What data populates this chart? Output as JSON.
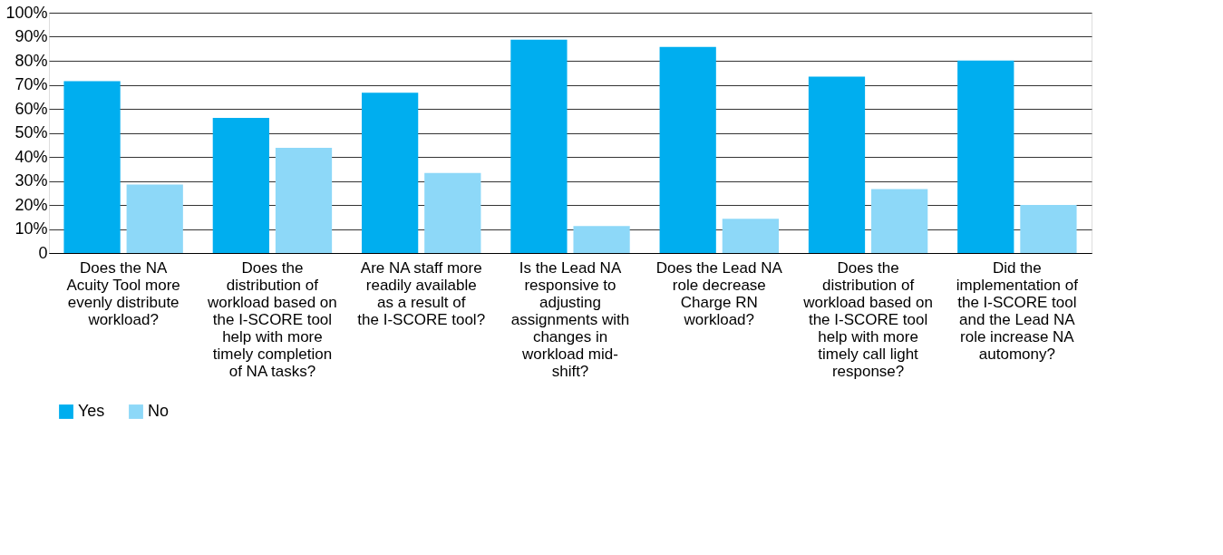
{
  "chart_data": {
    "type": "bar",
    "categories": [
      "Does the NA Acuity Tool more evenly distribute workload?",
      "Does the distribution of workload based on the I-SCORE tool help with more timely completion of NA tasks?",
      "Are NA staff more readily available as a result of the I-SCORE tool?",
      "Is the Lead NA responsive to adjusting assignments with changes in workload mid-shift?",
      "Does the Lead NA role decrease Charge RN workload?",
      "Does the distribution of workload based on the I-SCORE tool help with more timely call light response?",
      "Did the implementation of the I-SCORE tool and the Lead NA role increase NA automony?"
    ],
    "series": [
      {
        "name": "Yes",
        "color": "#00aeef",
        "values": [
          71.5,
          56.2,
          66.7,
          88.8,
          85.8,
          73.4,
          80.1
        ]
      },
      {
        "name": "No",
        "color": "#8dd8f8",
        "values": [
          28.5,
          43.8,
          33.3,
          11.2,
          14.2,
          26.6,
          20.0
        ]
      }
    ],
    "ylim": [
      0,
      100
    ],
    "yticks": [
      0,
      {
        "value": 10,
        "label": "10%"
      },
      {
        "value": 20,
        "label": "20%"
      },
      {
        "value": 30,
        "label": "30%"
      },
      {
        "value": 40,
        "label": "40%"
      },
      {
        "value": 50,
        "label": "50%"
      },
      {
        "value": 60,
        "label": "60%"
      },
      {
        "value": 70,
        "label": "70%"
      },
      {
        "value": 80,
        "label": "80%"
      },
      {
        "value": 90,
        "label": "90%"
      },
      {
        "value": 100,
        "label": "100%"
      }
    ],
    "grid": "y",
    "legend": "bottom"
  }
}
